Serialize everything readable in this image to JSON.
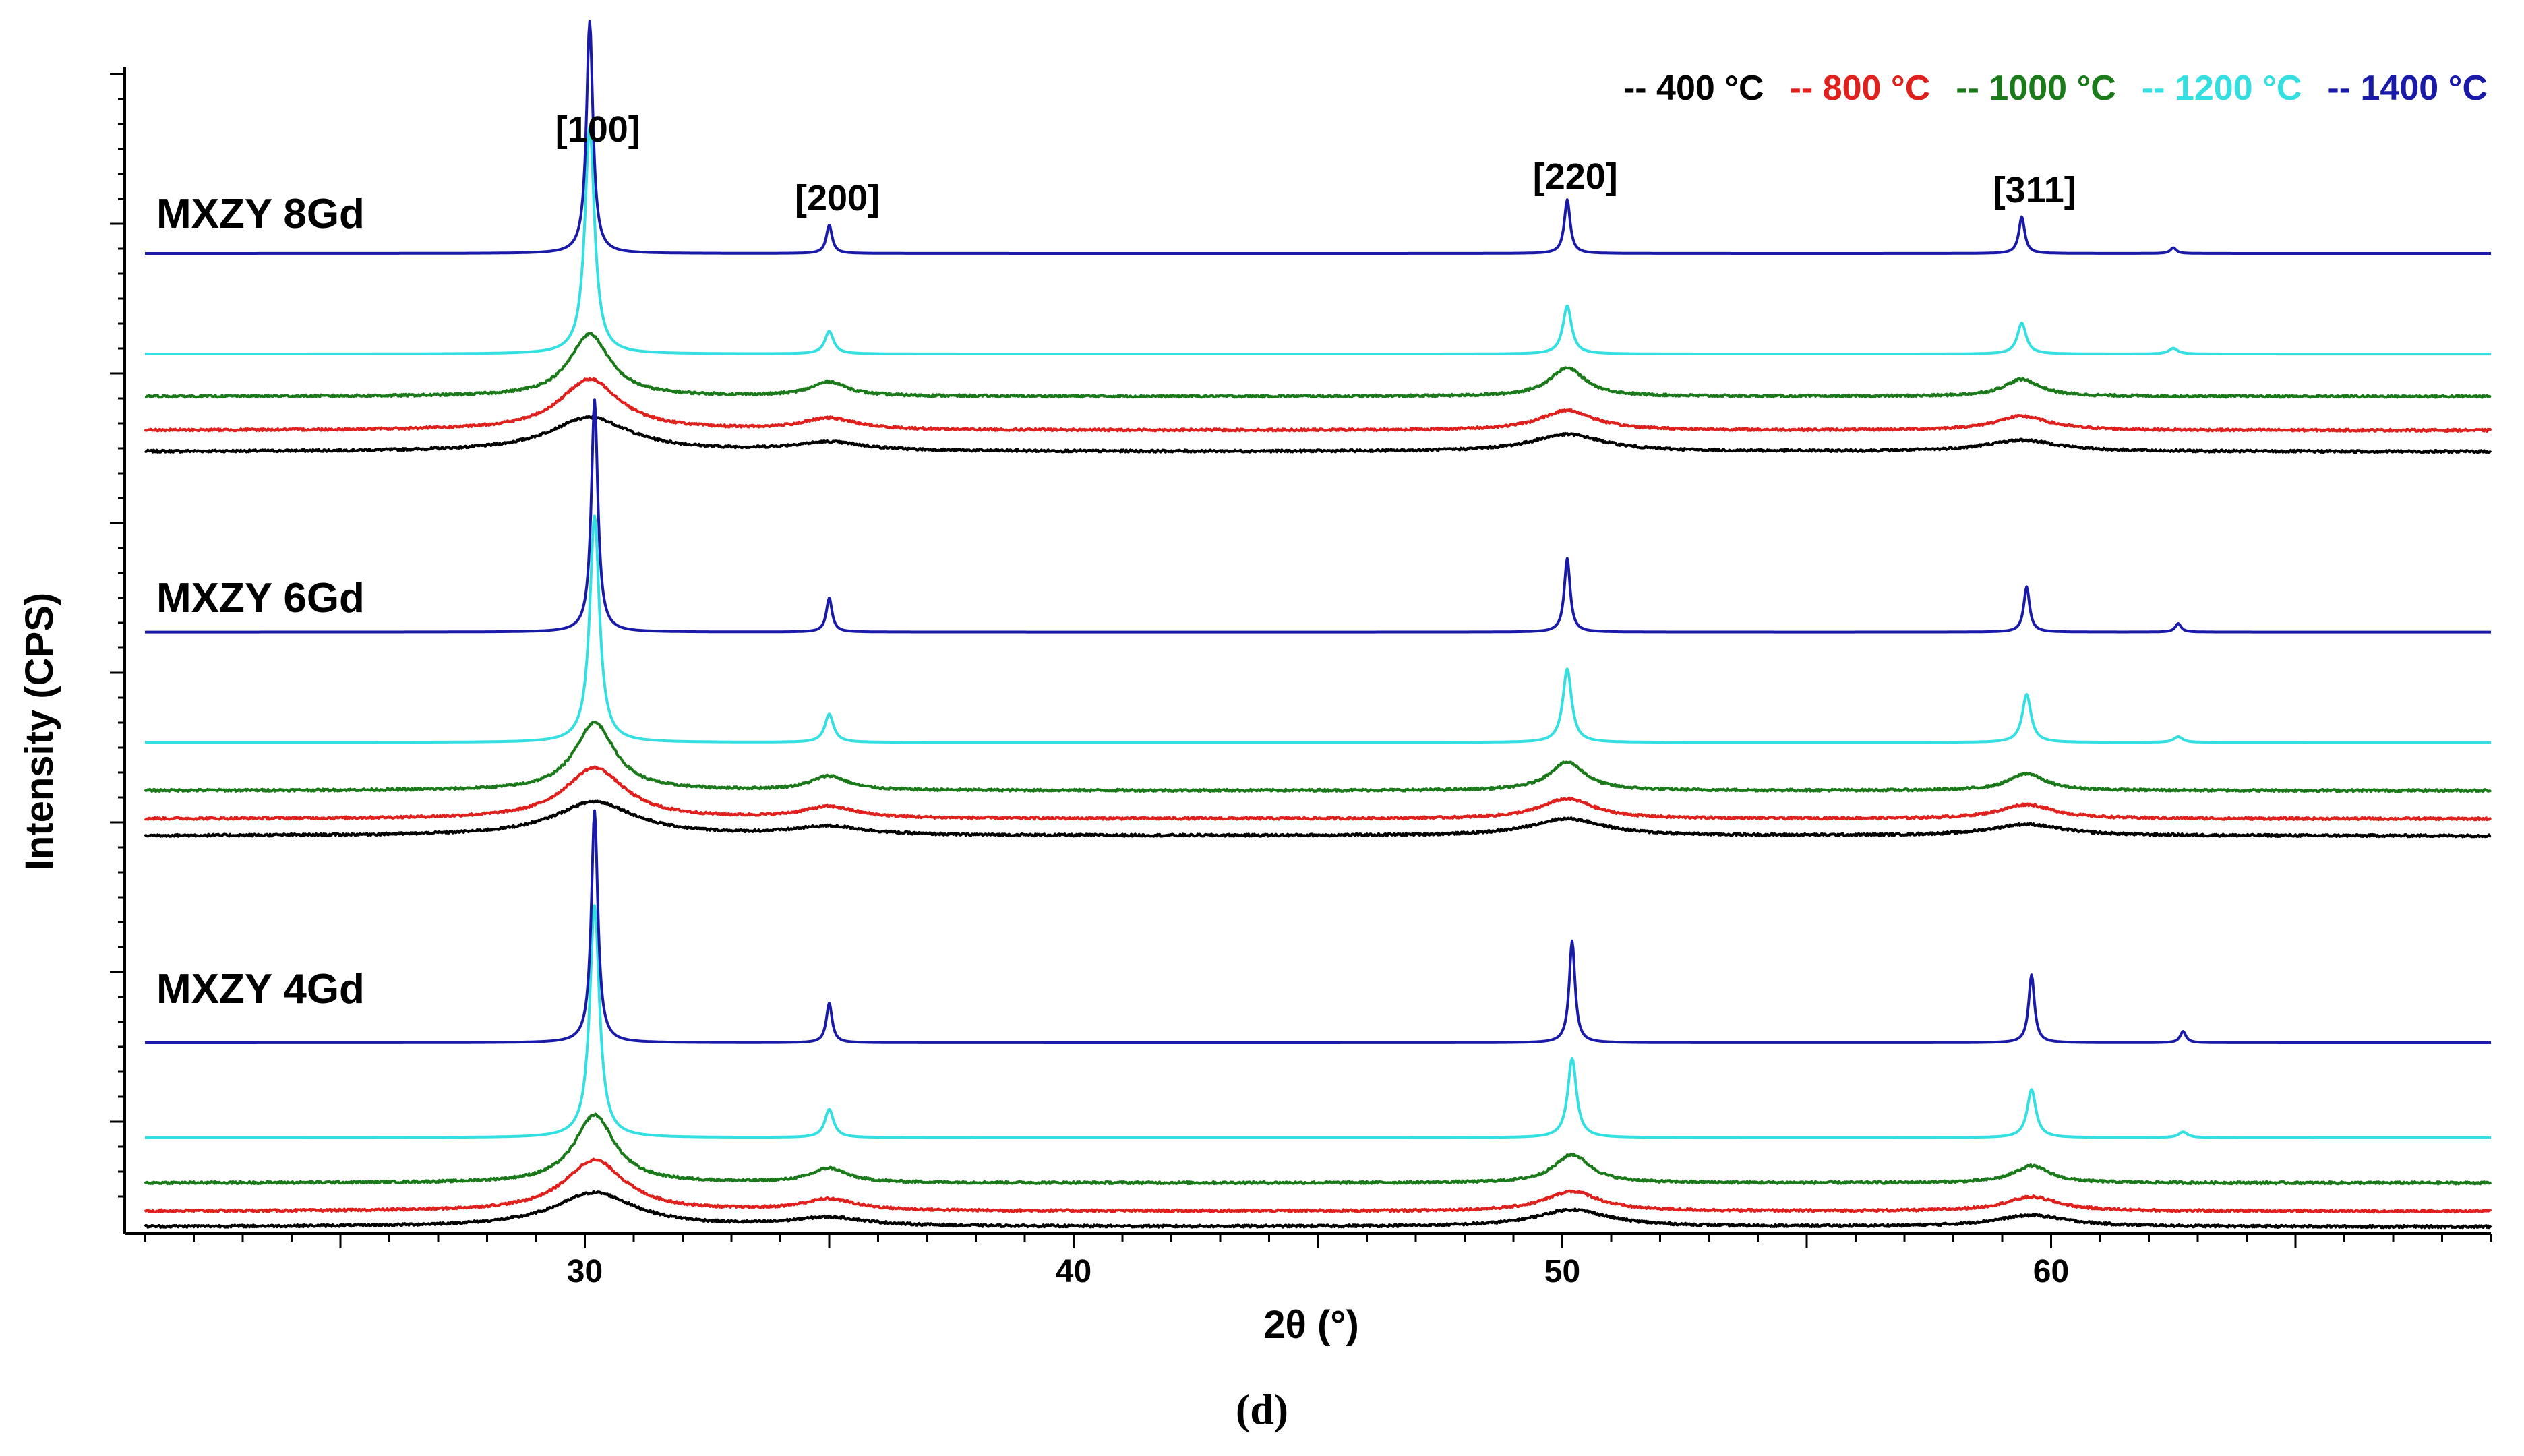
{
  "chart_data": {
    "type": "line",
    "title": "",
    "xlabel": "2θ (°)",
    "ylabel": "Intensity (CPS)",
    "caption": "(d)",
    "xlim": [
      21,
      69
    ],
    "xticks": [
      30,
      40,
      50,
      60
    ],
    "x_minor_step": 1,
    "yticks": "unlabeled",
    "grid": false,
    "legend_position": "top-right",
    "reflections": [
      {
        "label": "[100]",
        "x": 30.1,
        "peak_height": 1.0
      },
      {
        "label": "[200]",
        "x": 35.0,
        "peak_height": 0.12
      },
      {
        "label": "[220]",
        "x": 50.1,
        "peak_height": 0.28
      },
      {
        "label": "[311]",
        "x": 59.5,
        "peak_height": 0.18
      }
    ],
    "temperatures": [
      {
        "key": "t400",
        "label": "400 °C",
        "prefix": "--",
        "color": "#000000"
      },
      {
        "key": "t800",
        "label": "800 °C",
        "prefix": "--",
        "color": "#e0201c"
      },
      {
        "key": "t1000",
        "label": "1000 °C",
        "prefix": "--",
        "color": "#1a7a1a"
      },
      {
        "key": "t1200",
        "label": "1200 °C",
        "prefix": "--",
        "color": "#33dfe0"
      },
      {
        "key": "t1400",
        "label": "1400 °C",
        "prefix": "--",
        "color": "#1a1aa8"
      }
    ],
    "groups": [
      {
        "name": "MXZY 8Gd",
        "series": [
          {
            "temp": "t400",
            "baseline": 0.0,
            "peak_width": 1.0,
            "peaks": [
              30.1,
              35.0,
              50.1,
              59.4,
              62.5
            ],
            "heights": [
              0.12,
              0.03,
              0.06,
              0.04,
              0.0
            ]
          },
          {
            "temp": "t800",
            "baseline": 0.075,
            "peak_width": 0.75,
            "peaks": [
              30.1,
              35.0,
              50.1,
              59.4,
              62.5
            ],
            "heights": [
              0.18,
              0.04,
              0.07,
              0.05,
              0.0
            ]
          },
          {
            "temp": "t1000",
            "baseline": 0.195,
            "peak_width": 0.5,
            "peaks": [
              30.1,
              35.0,
              50.1,
              59.4,
              62.5
            ],
            "heights": [
              0.22,
              0.05,
              0.1,
              0.06,
              0.0
            ]
          },
          {
            "temp": "t1200",
            "baseline": 0.345,
            "peak_width": 0.12,
            "peaks": [
              30.1,
              35.0,
              50.1,
              59.4,
              62.5
            ],
            "heights": [
              0.8,
              0.08,
              0.17,
              0.11,
              0.02
            ]
          },
          {
            "temp": "t1400",
            "baseline": 0.7,
            "peak_width": 0.08,
            "peaks": [
              30.1,
              35.0,
              50.1,
              59.4,
              62.5
            ],
            "heights": [
              0.82,
              0.1,
              0.19,
              0.13,
              0.02
            ]
          }
        ]
      },
      {
        "name": "MXZY 6Gd",
        "series": [
          {
            "temp": "t400",
            "baseline": 0.0,
            "peak_width": 1.0,
            "peaks": [
              30.2,
              35.0,
              50.1,
              59.5,
              62.6
            ],
            "heights": [
              0.12,
              0.03,
              0.06,
              0.04,
              0.0
            ]
          },
          {
            "temp": "t800",
            "baseline": 0.06,
            "peak_width": 0.75,
            "peaks": [
              30.2,
              35.0,
              50.1,
              59.5,
              62.6
            ],
            "heights": [
              0.18,
              0.04,
              0.07,
              0.05,
              0.0
            ]
          },
          {
            "temp": "t1000",
            "baseline": 0.16,
            "peak_width": 0.5,
            "peaks": [
              30.2,
              35.0,
              50.1,
              59.5,
              62.6
            ],
            "heights": [
              0.24,
              0.05,
              0.1,
              0.06,
              0.0
            ]
          },
          {
            "temp": "t1200",
            "baseline": 0.33,
            "peak_width": 0.12,
            "peaks": [
              30.2,
              35.0,
              50.1,
              59.5,
              62.6
            ],
            "heights": [
              0.8,
              0.1,
              0.26,
              0.17,
              0.02
            ]
          },
          {
            "temp": "t1400",
            "baseline": 0.72,
            "peak_width": 0.08,
            "peaks": [
              30.2,
              35.0,
              50.1,
              59.5,
              62.6
            ],
            "heights": [
              0.82,
              0.12,
              0.26,
              0.16,
              0.03
            ]
          }
        ]
      },
      {
        "name": "MXZY 4Gd",
        "series": [
          {
            "temp": "t400",
            "baseline": 0.0,
            "peak_width": 1.0,
            "peaks": [
              30.2,
              35.0,
              50.2,
              59.6,
              62.7
            ],
            "heights": [
              0.12,
              0.03,
              0.06,
              0.04,
              0.0
            ]
          },
          {
            "temp": "t800",
            "baseline": 0.055,
            "peak_width": 0.75,
            "peaks": [
              30.2,
              35.0,
              50.2,
              59.6,
              62.7
            ],
            "heights": [
              0.18,
              0.04,
              0.07,
              0.05,
              0.0
            ]
          },
          {
            "temp": "t1000",
            "baseline": 0.155,
            "peak_width": 0.5,
            "peaks": [
              30.2,
              35.0,
              50.2,
              59.6,
              62.7
            ],
            "heights": [
              0.24,
              0.05,
              0.1,
              0.06,
              0.0
            ]
          },
          {
            "temp": "t1200",
            "baseline": 0.315,
            "peak_width": 0.12,
            "peaks": [
              30.2,
              35.0,
              50.2,
              59.6,
              62.7
            ],
            "heights": [
              0.82,
              0.1,
              0.28,
              0.17,
              0.02
            ]
          },
          {
            "temp": "t1400",
            "baseline": 0.65,
            "peak_width": 0.08,
            "peaks": [
              30.2,
              35.0,
              50.2,
              59.6,
              62.7
            ],
            "heights": [
              0.82,
              0.14,
              0.36,
              0.24,
              0.04
            ]
          }
        ]
      }
    ]
  }
}
